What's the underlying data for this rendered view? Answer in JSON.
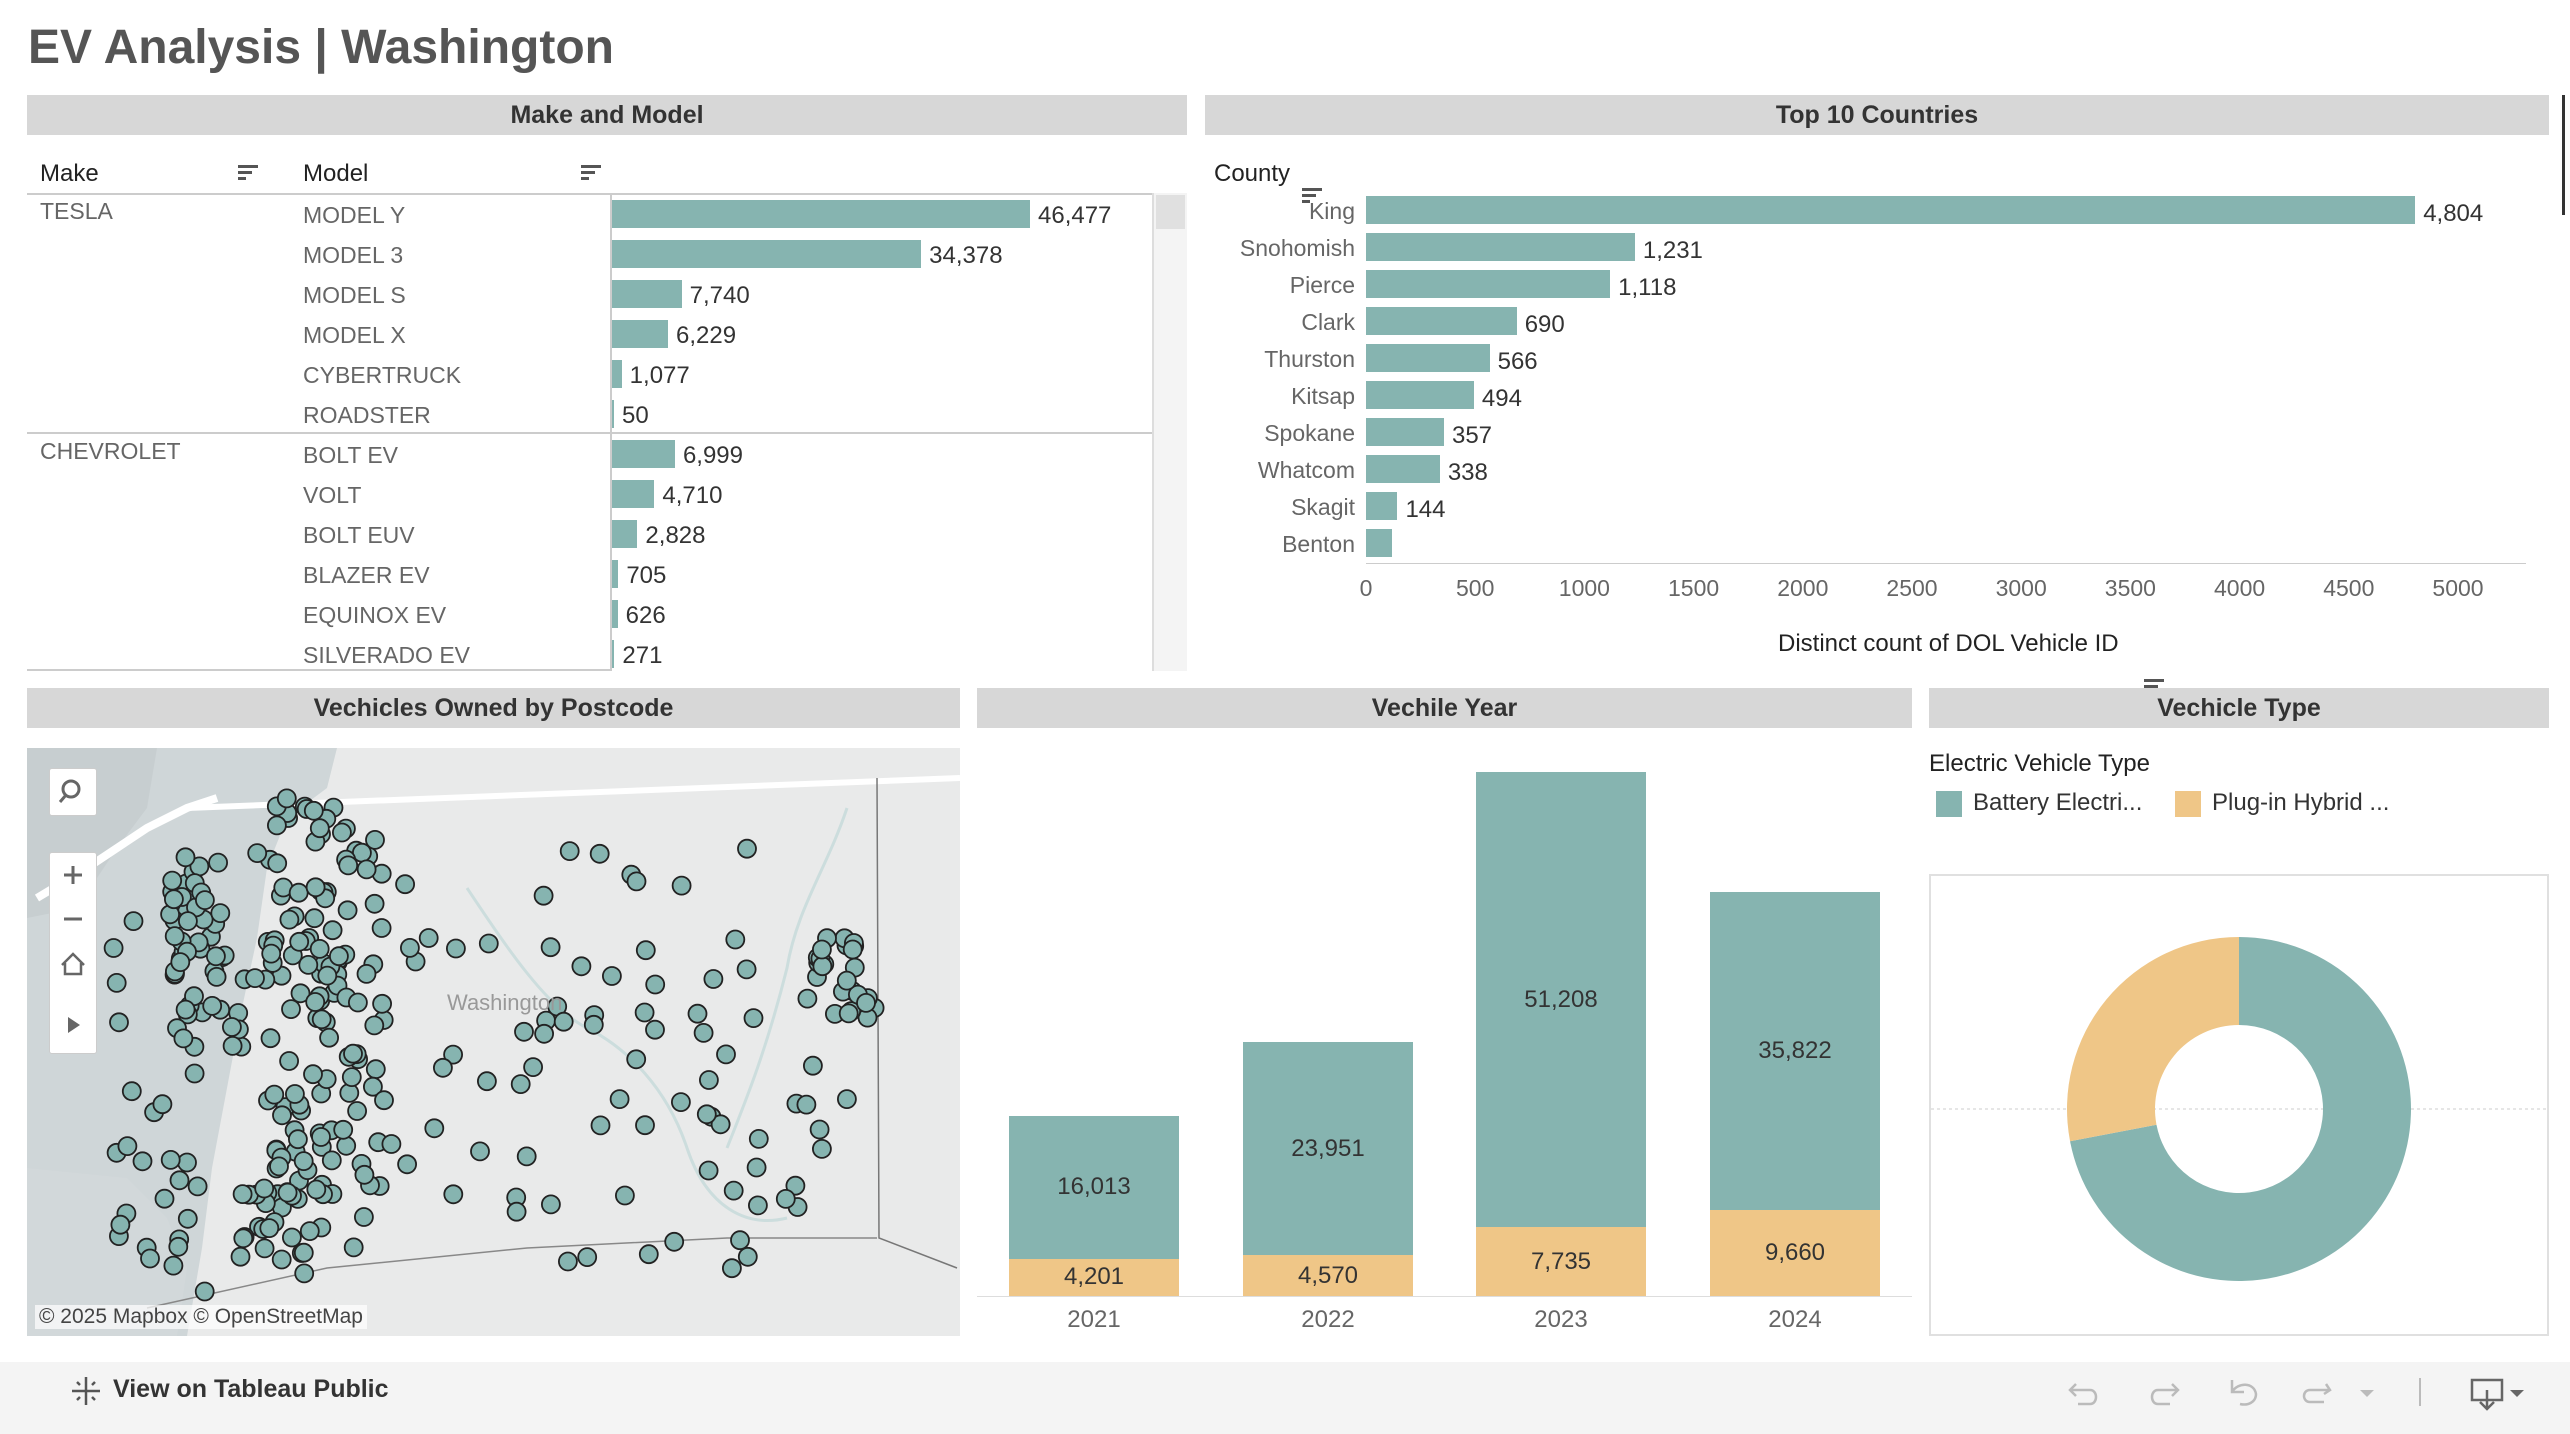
{
  "title": "EV Analysis | Washington",
  "make_model": {
    "header": "Make and Model",
    "col_make": "Make",
    "col_model": "Model",
    "groups": [
      {
        "make": "TESLA",
        "rows": [
          {
            "model": "MODEL Y",
            "value": 46477,
            "label": "46,477"
          },
          {
            "model": "MODEL 3",
            "value": 34378,
            "label": "34,378"
          },
          {
            "model": "MODEL S",
            "value": 7740,
            "label": "7,740"
          },
          {
            "model": "MODEL X",
            "value": 6229,
            "label": "6,229"
          },
          {
            "model": "CYBERTRUCK",
            "value": 1077,
            "label": "1,077"
          },
          {
            "model": "ROADSTER",
            "value": 50,
            "label": "50"
          }
        ]
      },
      {
        "make": "CHEVROLET",
        "rows": [
          {
            "model": "BOLT EV",
            "value": 6999,
            "label": "6,999"
          },
          {
            "model": "VOLT",
            "value": 4710,
            "label": "4,710"
          },
          {
            "model": "BOLT EUV",
            "value": 2828,
            "label": "2,828"
          },
          {
            "model": "BLAZER EV",
            "value": 705,
            "label": "705"
          },
          {
            "model": "EQUINOX EV",
            "value": 626,
            "label": "626"
          },
          {
            "model": "SILVERADO EV",
            "value": 271,
            "label": "271"
          }
        ]
      }
    ]
  },
  "top_counties": {
    "header": "Top 10 Countries",
    "col_county": "County",
    "axis_title": "Distinct count of DOL Vehicle ID",
    "ticks": [
      "0",
      "500",
      "1000",
      "1500",
      "2000",
      "2500",
      "3000",
      "3500",
      "4000",
      "4500",
      "5000"
    ]
  },
  "map": {
    "header": "Vechicles Owned by Postcode",
    "region_label": "Washington",
    "attribution": "© 2025 Mapbox  © OpenStreetMap"
  },
  "year_panel": {
    "header": "Vechile Year"
  },
  "type_panel": {
    "header": "Vechicle Type",
    "legend_title": "Electric Vehicle Type",
    "legend": [
      {
        "label": "Battery Electri...",
        "color": "#86b4b0"
      },
      {
        "label": "Plug-in Hybrid ...",
        "color": "#efc687"
      }
    ]
  },
  "footer": {
    "view_label": "View on Tableau Public"
  },
  "colors": {
    "teal": "#86b4b0",
    "orange": "#efc687",
    "header_bg": "#d7d7d7"
  },
  "chart_data": [
    {
      "type": "bar",
      "orientation": "horizontal",
      "categories": [
        "King",
        "Snohomish",
        "Pierce",
        "Clark",
        "Thurston",
        "Kitsap",
        "Spokane",
        "Whatcom",
        "Skagit",
        "Benton"
      ],
      "values": [
        4804,
        1231,
        1118,
        690,
        566,
        494,
        357,
        338,
        144,
        120
      ],
      "value_labels": [
        "4,804",
        "1,231",
        "1,118",
        "690",
        "566",
        "494",
        "357",
        "338",
        "144",
        ""
      ],
      "xlabel": "Distinct count of DOL Vehicle ID",
      "ylabel": "County",
      "xlim": [
        0,
        5000
      ]
    },
    {
      "type": "bar",
      "stacked": true,
      "categories": [
        "2021",
        "2022",
        "2023",
        "2024"
      ],
      "series": [
        {
          "values": [
            16013,
            23951,
            51208,
            35822
          ],
          "labels": [
            "16,013",
            "23,951",
            "51,208",
            "35,822"
          ],
          "color": "#86b4b0"
        },
        {
          "values": [
            4201,
            4570,
            7735,
            9660
          ],
          "labels": [
            "4,201",
            "4,570",
            "7,735",
            "9,660"
          ],
          "color": "#efc687"
        }
      ]
    },
    {
      "type": "pie",
      "donut": true,
      "labels": [
        "Battery Electri...",
        "Plug-in Hybrid ..."
      ],
      "values": [
        72,
        28
      ],
      "colors": [
        "#86b4b0",
        "#efc687"
      ]
    }
  ]
}
